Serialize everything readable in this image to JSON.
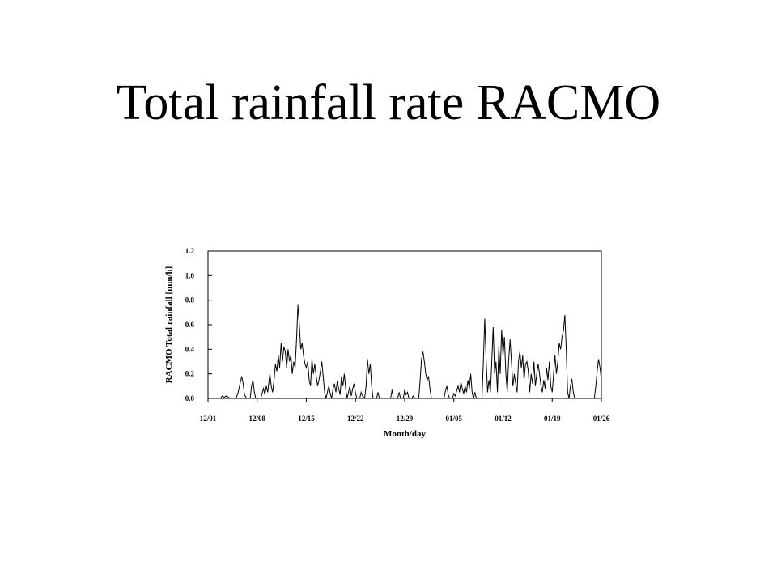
{
  "slide": {
    "title": "Total rainfall rate RACMO"
  },
  "chart_data": {
    "type": "line",
    "title": "",
    "xlabel": "Month/day",
    "ylabel": "RACMO Total rainfall [mm/h]",
    "ylim": [
      0,
      1.2
    ],
    "xlim_days": [
      0,
      56
    ],
    "x_ticks": [
      "12/01",
      "12/08",
      "12/15",
      "12/22",
      "12/29",
      "01/05",
      "01/12",
      "01/19",
      "01/26"
    ],
    "x_tick_days": [
      0,
      7,
      14,
      21,
      28,
      35,
      42,
      49,
      56
    ],
    "y_ticks": [
      "0.0",
      "0.2",
      "0.4",
      "0.6",
      "0.8",
      "1.0",
      "1.2"
    ],
    "y_tick_values": [
      0,
      0.2,
      0.4,
      0.6,
      0.8,
      1.0,
      1.2
    ],
    "grid": false,
    "series": [
      {
        "x_unit": "days since 12/01",
        "points": [
          [
            0,
            0
          ],
          [
            1.8,
            0
          ],
          [
            2.0,
            0.02
          ],
          [
            2.3,
            0.01
          ],
          [
            2.6,
            0.02
          ],
          [
            2.9,
            0.01
          ],
          [
            3.2,
            0
          ],
          [
            4.0,
            0
          ],
          [
            4.3,
            0.05
          ],
          [
            4.6,
            0.13
          ],
          [
            4.8,
            0.18
          ],
          [
            5.0,
            0.12
          ],
          [
            5.2,
            0.03
          ],
          [
            5.5,
            0
          ],
          [
            6.0,
            0
          ],
          [
            6.2,
            0.1
          ],
          [
            6.4,
            0.15
          ],
          [
            6.6,
            0.05
          ],
          [
            6.8,
            0
          ],
          [
            7.5,
            0
          ],
          [
            7.7,
            0.04
          ],
          [
            7.9,
            0.08
          ],
          [
            8.1,
            0.03
          ],
          [
            8.3,
            0.1
          ],
          [
            8.5,
            0.05
          ],
          [
            8.8,
            0.2
          ],
          [
            9.0,
            0.1
          ],
          [
            9.2,
            0.05
          ],
          [
            9.4,
            0.15
          ],
          [
            9.6,
            0.28
          ],
          [
            9.8,
            0.22
          ],
          [
            10.0,
            0.35
          ],
          [
            10.2,
            0.25
          ],
          [
            10.4,
            0.45
          ],
          [
            10.6,
            0.3
          ],
          [
            10.8,
            0.42
          ],
          [
            11.0,
            0.38
          ],
          [
            11.2,
            0.25
          ],
          [
            11.4,
            0.4
          ],
          [
            11.6,
            0.3
          ],
          [
            11.8,
            0.35
          ],
          [
            12.0,
            0.2
          ],
          [
            12.2,
            0.3
          ],
          [
            12.4,
            0.25
          ],
          [
            12.6,
            0.48
          ],
          [
            12.8,
            0.76
          ],
          [
            13.0,
            0.6
          ],
          [
            13.2,
            0.4
          ],
          [
            13.4,
            0.45
          ],
          [
            13.6,
            0.35
          ],
          [
            13.8,
            0.28
          ],
          [
            14.0,
            0.25
          ],
          [
            14.2,
            0.3
          ],
          [
            14.4,
            0.15
          ],
          [
            14.6,
            0.1
          ],
          [
            14.8,
            0.32
          ],
          [
            15.0,
            0.2
          ],
          [
            15.2,
            0.28
          ],
          [
            15.4,
            0.18
          ],
          [
            15.6,
            0.1
          ],
          [
            15.8,
            0.15
          ],
          [
            16.0,
            0.22
          ],
          [
            16.2,
            0.3
          ],
          [
            16.4,
            0.18
          ],
          [
            16.6,
            0.05
          ],
          [
            16.8,
            0
          ],
          [
            17.0,
            0.05
          ],
          [
            17.2,
            0.1
          ],
          [
            17.4,
            0.04
          ],
          [
            17.6,
            0
          ],
          [
            17.8,
            0.08
          ],
          [
            18.0,
            0.12
          ],
          [
            18.2,
            0.05
          ],
          [
            18.4,
            0.14
          ],
          [
            18.6,
            0.08
          ],
          [
            18.8,
            0.03
          ],
          [
            19.0,
            0.18
          ],
          [
            19.2,
            0.1
          ],
          [
            19.4,
            0.2
          ],
          [
            19.6,
            0.08
          ],
          [
            19.8,
            0
          ],
          [
            20.0,
            0.05
          ],
          [
            20.2,
            0.1
          ],
          [
            20.4,
            0.02
          ],
          [
            20.6,
            0.08
          ],
          [
            20.8,
            0.12
          ],
          [
            21.0,
            0.04
          ],
          [
            21.2,
            0
          ],
          [
            21.6,
            0
          ],
          [
            21.8,
            0.05
          ],
          [
            22.0,
            0.02
          ],
          [
            22.3,
            0
          ],
          [
            22.5,
            0.1
          ],
          [
            22.7,
            0.32
          ],
          [
            22.9,
            0.2
          ],
          [
            23.1,
            0.28
          ],
          [
            23.3,
            0.1
          ],
          [
            23.5,
            0
          ],
          [
            24.0,
            0
          ],
          [
            24.2,
            0.05
          ],
          [
            24.4,
            0
          ],
          [
            26.0,
            0
          ],
          [
            26.2,
            0.07
          ],
          [
            26.4,
            0
          ],
          [
            27.0,
            0
          ],
          [
            27.2,
            0.05
          ],
          [
            27.4,
            0
          ],
          [
            27.8,
            0
          ],
          [
            28.0,
            0.07
          ],
          [
            28.2,
            0.03
          ],
          [
            28.4,
            0.05
          ],
          [
            28.6,
            0
          ],
          [
            29.0,
            0
          ],
          [
            29.2,
            0.02
          ],
          [
            29.5,
            0
          ],
          [
            30.0,
            0
          ],
          [
            30.2,
            0.15
          ],
          [
            30.4,
            0.32
          ],
          [
            30.6,
            0.38
          ],
          [
            30.8,
            0.3
          ],
          [
            31.0,
            0.2
          ],
          [
            31.2,
            0.15
          ],
          [
            31.4,
            0.18
          ],
          [
            31.6,
            0.08
          ],
          [
            31.8,
            0
          ],
          [
            33.6,
            0
          ],
          [
            33.8,
            0.06
          ],
          [
            34.0,
            0.1
          ],
          [
            34.2,
            0.03
          ],
          [
            34.4,
            0
          ],
          [
            34.8,
            0
          ],
          [
            35.0,
            0.04
          ],
          [
            35.2,
            0.02
          ],
          [
            35.4,
            0.06
          ],
          [
            35.6,
            0.1
          ],
          [
            35.8,
            0.05
          ],
          [
            36.0,
            0.13
          ],
          [
            36.2,
            0.08
          ],
          [
            36.4,
            0.04
          ],
          [
            36.6,
            0.1
          ],
          [
            36.8,
            0.05
          ],
          [
            37.0,
            0.15
          ],
          [
            37.2,
            0.08
          ],
          [
            37.4,
            0.2
          ],
          [
            37.6,
            0.05
          ],
          [
            37.8,
            0
          ],
          [
            38.0,
            0.05
          ],
          [
            38.2,
            0
          ],
          [
            39.0,
            0
          ],
          [
            39.2,
            0.3
          ],
          [
            39.4,
            0.65
          ],
          [
            39.6,
            0.3
          ],
          [
            39.8,
            0.05
          ],
          [
            40.0,
            0.15
          ],
          [
            40.2,
            0.05
          ],
          [
            40.4,
            0.3
          ],
          [
            40.6,
            0.58
          ],
          [
            40.8,
            0.2
          ],
          [
            41.0,
            0.3
          ],
          [
            41.2,
            0.05
          ],
          [
            41.4,
            0.42
          ],
          [
            41.6,
            0.2
          ],
          [
            41.8,
            0.56
          ],
          [
            42.0,
            0.35
          ],
          [
            42.2,
            0.5
          ],
          [
            42.4,
            0.2
          ],
          [
            42.6,
            0.05
          ],
          [
            42.8,
            0.3
          ],
          [
            43.0,
            0.48
          ],
          [
            43.2,
            0.3
          ],
          [
            43.4,
            0.1
          ],
          [
            43.6,
            0.2
          ],
          [
            43.8,
            0.12
          ],
          [
            44.0,
            0.05
          ],
          [
            44.2,
            0.3
          ],
          [
            44.4,
            0.38
          ],
          [
            44.6,
            0.25
          ],
          [
            44.8,
            0.35
          ],
          [
            45.0,
            0.15
          ],
          [
            45.2,
            0.28
          ],
          [
            45.4,
            0.3
          ],
          [
            45.6,
            0.22
          ],
          [
            45.8,
            0.05
          ],
          [
            46.0,
            0.2
          ],
          [
            46.2,
            0.12
          ],
          [
            46.4,
            0.3
          ],
          [
            46.6,
            0.1
          ],
          [
            46.8,
            0.2
          ],
          [
            47.0,
            0.28
          ],
          [
            47.2,
            0.2
          ],
          [
            47.4,
            0.1
          ],
          [
            47.6,
            0.05
          ],
          [
            47.8,
            0.15
          ],
          [
            48.0,
            0.08
          ],
          [
            48.2,
            0.25
          ],
          [
            48.4,
            0.15
          ],
          [
            48.6,
            0.3
          ],
          [
            48.8,
            0.1
          ],
          [
            49.0,
            0.05
          ],
          [
            49.2,
            0.2
          ],
          [
            49.4,
            0.35
          ],
          [
            49.6,
            0.2
          ],
          [
            49.8,
            0.3
          ],
          [
            50.0,
            0.45
          ],
          [
            50.2,
            0.4
          ],
          [
            50.4,
            0.5
          ],
          [
            50.6,
            0.55
          ],
          [
            50.8,
            0.68
          ],
          [
            51.0,
            0.4
          ],
          [
            51.2,
            0.05
          ],
          [
            51.4,
            0
          ],
          [
            51.6,
            0.1
          ],
          [
            51.8,
            0.16
          ],
          [
            52.0,
            0.05
          ],
          [
            52.2,
            0
          ],
          [
            55.0,
            0
          ],
          [
            55.2,
            0.1
          ],
          [
            55.4,
            0.22
          ],
          [
            55.6,
            0.32
          ],
          [
            55.8,
            0.25
          ],
          [
            56.0,
            0.15
          ]
        ]
      }
    ]
  }
}
